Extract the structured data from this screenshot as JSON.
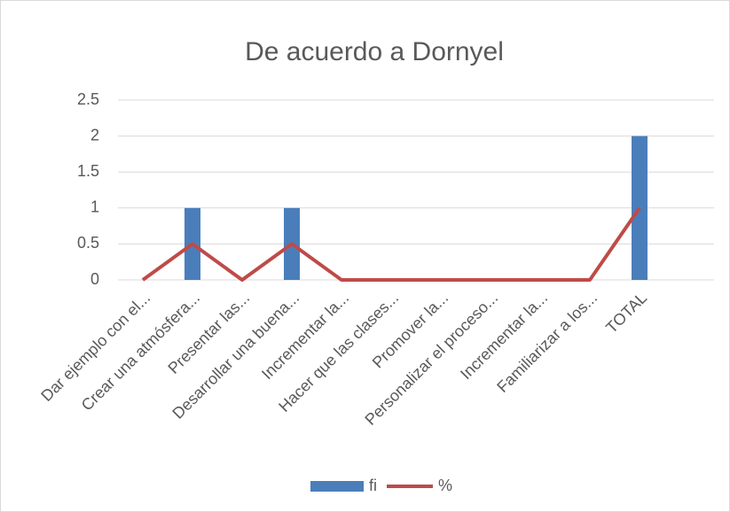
{
  "chart_data": {
    "type": "bar",
    "title": "De acuerdo a Dornyel",
    "categories": [
      "Dar ejemplo con el...",
      "Crear una atmósfera...",
      "Presentar las...",
      "Desarrollar una buena...",
      "Incrementar la...",
      "Hacer que las clases...",
      "Promover la...",
      "Personalizar el proceso...",
      "Incrementar la...",
      "Familiarizar a los...",
      "TOTAL",
      null
    ],
    "series": [
      {
        "name": "fi",
        "type": "bar",
        "color": "#4a7ebb",
        "values": [
          0,
          1,
          0,
          1,
          0,
          0,
          0,
          0,
          0,
          0,
          2,
          null
        ]
      },
      {
        "name": "%",
        "type": "line",
        "color": "#be4b48",
        "values": [
          0,
          0.5,
          0,
          0.5,
          0,
          0,
          0,
          0,
          0,
          0,
          1,
          null
        ]
      }
    ],
    "ylim": [
      0,
      2.5
    ],
    "yticks": [
      0,
      0.5,
      1,
      1.5,
      2,
      2.5
    ],
    "grid": true,
    "legend": "bottom"
  }
}
